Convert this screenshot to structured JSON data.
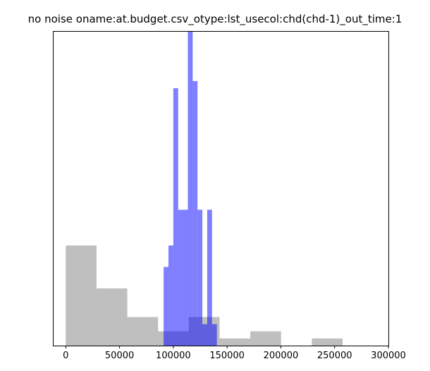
{
  "chart_data": {
    "type": "bar",
    "title": "no noise oname:at.budget.csv_otype:lst_usecol:chd(chd-1)_out_time:1",
    "xlabel": "",
    "ylabel": "",
    "xlim": [
      -12000,
      300000
    ],
    "ylim": [
      0,
      44
    ],
    "y_axis_visible": false,
    "grid": false,
    "xticks": [
      0,
      50000,
      100000,
      150000,
      200000,
      250000,
      300000
    ],
    "xtick_labels": [
      "0",
      "50000",
      "100000",
      "150000",
      "200000",
      "250000",
      "300000"
    ],
    "series": [
      {
        "color": "#808080",
        "opacity": 0.5,
        "bin_edges": [
          0,
          28600,
          57200,
          85800,
          114400,
          143000,
          171600,
          200200,
          228800,
          257400,
          286000
        ],
        "counts": [
          14,
          8,
          4,
          2,
          4,
          1,
          2,
          0,
          1,
          0
        ]
      },
      {
        "color": "#0000ff",
        "opacity": 0.5,
        "bin_edges": [
          91000,
          95500,
          100000,
          104500,
          109000,
          113500,
          118000,
          122500,
          127000,
          131500,
          136000,
          140500
        ],
        "counts": [
          11,
          14,
          36,
          19,
          19,
          44,
          37,
          19,
          3,
          19,
          3
        ]
      }
    ]
  }
}
